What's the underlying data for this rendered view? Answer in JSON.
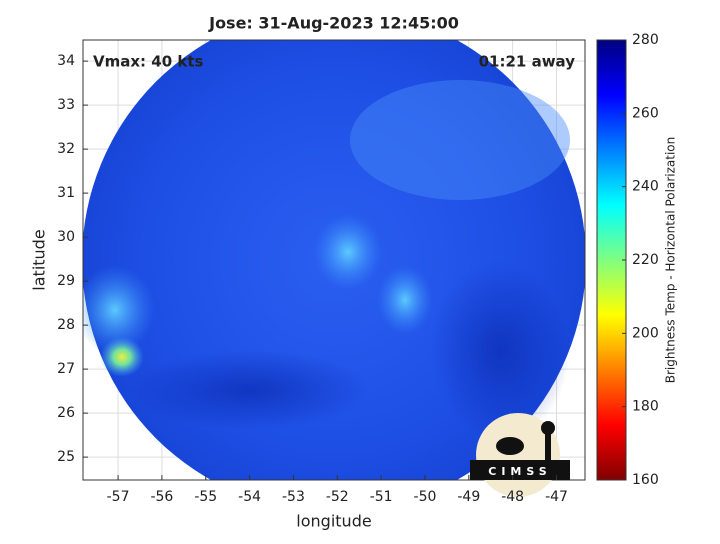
{
  "chart_data": {
    "type": "image",
    "title": "Jose: 31-Aug-2023 12:45:00",
    "annotations": [
      "Vmax: 40 kts",
      "01:21 away"
    ],
    "x_label": "longitude",
    "y_label": "latitude",
    "xlim": [
      -57.8,
      -46.35
    ],
    "ylim": [
      24.48,
      34.48
    ],
    "xticks": [
      -57,
      -56,
      -55,
      -54,
      -53,
      -52,
      -51,
      -50,
      -49,
      -48,
      -47
    ],
    "yticks": [
      25,
      26,
      27,
      28,
      29,
      30,
      31,
      32,
      33,
      34
    ],
    "grid": true,
    "colorbar": {
      "label": "Brightness Temp - Horizontal Polarization",
      "lim": [
        160,
        280
      ],
      "ticks": [
        160,
        180,
        200,
        220,
        240,
        260,
        280
      ],
      "colormap": "jet"
    },
    "logo": "CIMSS"
  }
}
